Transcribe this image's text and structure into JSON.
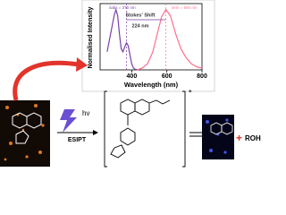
{
  "chart_data": {
    "type": "line",
    "x_label": "Wavelength (nm)",
    "y_label": "Normalised Intensity",
    "xlim": [
      220,
      800
    ],
    "xticks": [
      400,
      600,
      800
    ],
    "ylim": [
      0,
      1.1
    ],
    "annotations": [
      "λabs = 370 nm",
      "λem = 594 nm",
      "Stokes' Shift",
      "224 nm"
    ],
    "series": [
      {
        "name": "Absorption",
        "color": "#7b3fa8",
        "x": [
          260,
          280,
          300,
          310,
          320,
          330,
          340,
          350,
          360,
          370,
          380,
          390,
          400,
          410,
          420,
          440
        ],
        "values": [
          0.3,
          0.6,
          0.9,
          1.0,
          0.9,
          0.6,
          0.35,
          0.3,
          0.38,
          0.45,
          0.4,
          0.25,
          0.1,
          0.03,
          0.01,
          0
        ]
      },
      {
        "name": "Emission",
        "color": "#ff6f8f",
        "x": [
          430,
          460,
          490,
          520,
          550,
          570,
          594,
          620,
          650,
          680,
          710,
          740,
          770,
          800
        ],
        "values": [
          0,
          0.03,
          0.1,
          0.3,
          0.65,
          0.88,
          1.0,
          0.9,
          0.6,
          0.35,
          0.2,
          0.1,
          0.05,
          0.03
        ]
      }
    ]
  },
  "scheme": {
    "light": "hν",
    "process": "ESIPT",
    "excited": "*",
    "product": "ROH",
    "plus": "+"
  }
}
